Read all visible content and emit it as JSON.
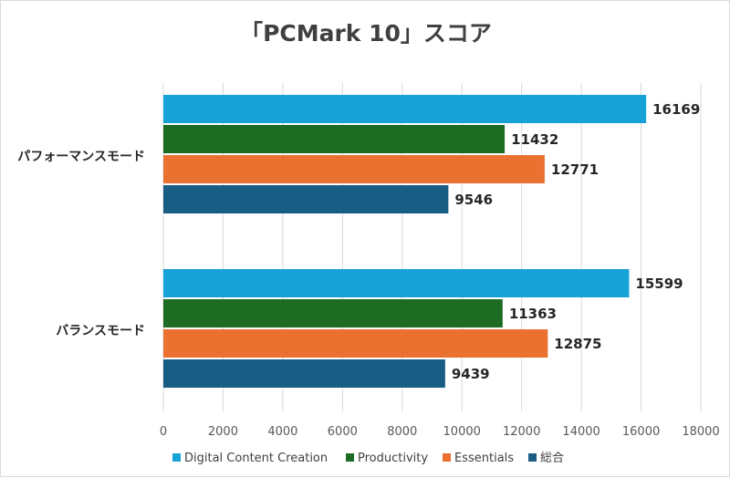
{
  "chart_data": {
    "type": "bar",
    "orientation": "horizontal",
    "title": "「PCMark 10」スコア",
    "categories": [
      "パフォーマンスモード",
      "バランスモード"
    ],
    "series": [
      {
        "name": "Digital Content Creation",
        "color": "#16a2d7",
        "values": [
          16169,
          15599
        ]
      },
      {
        "name": "Productivity",
        "color": "#1e6b24",
        "values": [
          11432,
          11363
        ]
      },
      {
        "name": "Essentials",
        "color": "#ea7130",
        "values": [
          12771,
          12875
        ]
      },
      {
        "name": "総合",
        "color": "#1a5d84",
        "values": [
          9546,
          9439
        ]
      }
    ],
    "xlim": [
      0,
      18000
    ],
    "xticks": [
      0,
      2000,
      4000,
      6000,
      8000,
      10000,
      12000,
      14000,
      16000,
      18000
    ],
    "grid": true,
    "legend_position": "bottom"
  }
}
